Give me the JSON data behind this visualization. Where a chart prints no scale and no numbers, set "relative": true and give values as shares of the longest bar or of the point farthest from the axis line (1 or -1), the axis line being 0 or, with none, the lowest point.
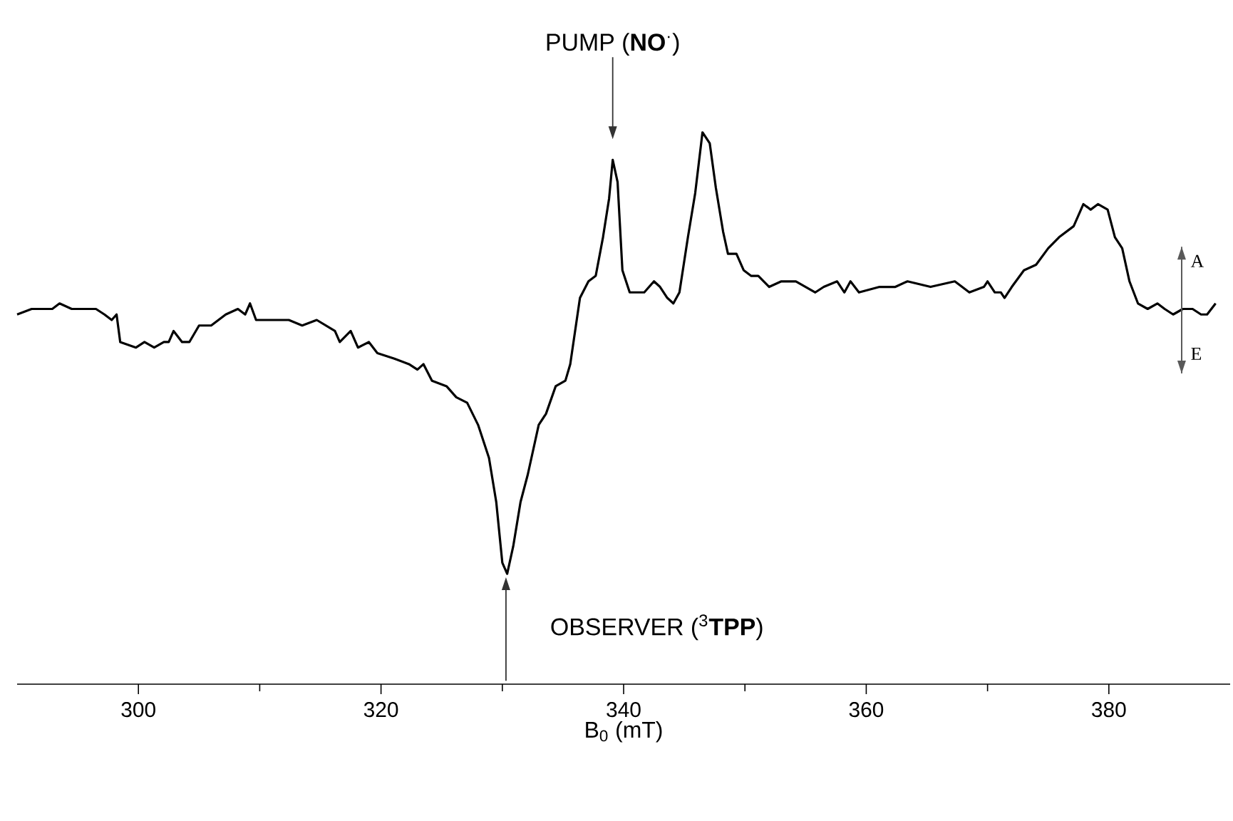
{
  "chart_data": {
    "type": "line",
    "relative": true,
    "xlabel": "B$_{0}$ (mT)",
    "xlim": [
      290,
      390
    ],
    "xticks": [
      300,
      320,
      340,
      360,
      380
    ],
    "tick_labels": "x",
    "marker": "none",
    "line_style": "solid",
    "x": [
      290.0,
      291.2,
      291.9,
      292.9,
      293.5,
      294.5,
      295.6,
      296.5,
      297.2,
      297.8,
      298.2,
      298.5,
      299.8,
      300.5,
      301.3,
      302.1,
      302.5,
      302.9,
      303.6,
      304.2,
      305.0,
      306.0,
      307.2,
      308.2,
      308.8,
      309.2,
      309.7,
      310.6,
      311.2,
      311.7,
      312.4,
      313.5,
      314.7,
      316.2,
      316.6,
      317.5,
      318.1,
      319.0,
      319.7,
      321.1,
      322.3,
      323.0,
      323.5,
      324.2,
      325.4,
      326.2,
      327.1,
      328.0,
      328.9,
      329.5,
      330.0,
      330.4,
      330.9,
      331.5,
      332.1,
      333.0,
      333.6,
      334.4,
      335.2,
      335.6,
      336.4,
      337.1,
      337.7,
      338.3,
      338.8,
      339.1,
      339.5,
      339.9,
      340.5,
      341.7,
      342.5,
      343.0,
      343.6,
      344.1,
      344.6,
      345.3,
      345.9,
      346.5,
      347.1,
      347.6,
      348.2,
      348.6,
      349.3,
      349.9,
      350.5,
      351.1,
      352.0,
      353.0,
      354.2,
      355.0,
      355.8,
      356.5,
      357.6,
      358.2,
      358.7,
      359.4,
      361.1,
      362.4,
      363.4,
      365.3,
      367.3,
      368.5,
      369.7,
      370.0,
      370.6,
      371.1,
      371.4,
      372.0,
      373.0,
      374.0,
      375.0,
      375.9,
      377.1,
      377.9,
      378.5,
      379.1,
      379.9,
      380.5,
      381.1,
      381.7,
      382.4,
      383.2,
      384.0,
      384.6,
      385.3,
      386.1,
      386.9,
      387.6,
      388.1,
      388.8
    ],
    "series": [
      {
        "color": "#000000",
        "values": [
          0.67,
          0.68,
          0.68,
          0.68,
          0.69,
          0.68,
          0.68,
          0.68,
          0.67,
          0.66,
          0.67,
          0.62,
          0.61,
          0.62,
          0.61,
          0.62,
          0.62,
          0.64,
          0.62,
          0.62,
          0.65,
          0.65,
          0.67,
          0.68,
          0.67,
          0.69,
          0.66,
          0.66,
          0.66,
          0.66,
          0.66,
          0.65,
          0.66,
          0.64,
          0.62,
          0.64,
          0.61,
          0.62,
          0.6,
          0.59,
          0.58,
          0.57,
          0.58,
          0.55,
          0.54,
          0.52,
          0.51,
          0.47,
          0.41,
          0.33,
          0.22,
          0.2,
          0.25,
          0.33,
          0.38,
          0.47,
          0.49,
          0.54,
          0.55,
          0.58,
          0.7,
          0.73,
          0.74,
          0.81,
          0.88,
          0.95,
          0.91,
          0.75,
          0.71,
          0.71,
          0.73,
          0.72,
          0.7,
          0.69,
          0.71,
          0.81,
          0.89,
          1.0,
          0.98,
          0.9,
          0.82,
          0.78,
          0.78,
          0.75,
          0.74,
          0.74,
          0.72,
          0.73,
          0.73,
          0.72,
          0.71,
          0.72,
          0.73,
          0.71,
          0.73,
          0.71,
          0.72,
          0.72,
          0.73,
          0.72,
          0.73,
          0.71,
          0.72,
          0.73,
          0.71,
          0.71,
          0.7,
          0.72,
          0.75,
          0.76,
          0.79,
          0.81,
          0.83,
          0.87,
          0.86,
          0.87,
          0.86,
          0.81,
          0.79,
          0.73,
          0.69,
          0.68,
          0.69,
          0.68,
          0.67,
          0.68,
          0.68,
          0.67,
          0.67,
          0.69
        ]
      }
    ],
    "annotations": [
      "PUMP (**NO**$^{·}$)",
      "OBSERVER ($^{3}$**TPP**)",
      "A",
      "E"
    ]
  }
}
